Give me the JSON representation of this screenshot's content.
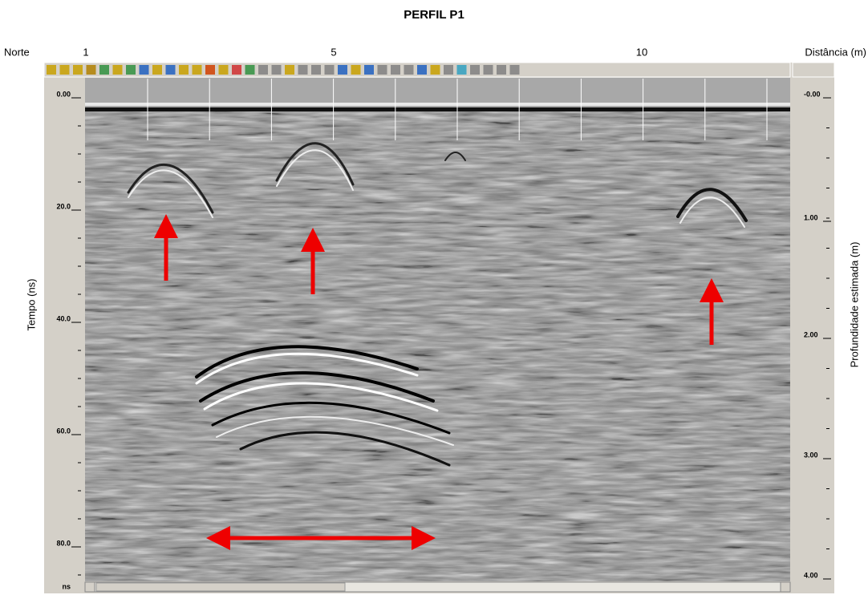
{
  "header": {
    "title": "PERFIL P1"
  },
  "top_axis": {
    "left_label": "Norte",
    "right_label": "Distância (m)",
    "ticks": [
      "1",
      "5",
      "10"
    ]
  },
  "left_axis": {
    "label": "Tempo (ns)",
    "ticks": [
      "0.00",
      "20.0",
      "40.0",
      "60.0",
      "80.0"
    ],
    "unit": "ns"
  },
  "right_axis": {
    "label": "Profundidade estimada (m)",
    "ticks": [
      "-0.00",
      "1.00",
      "2.00",
      "3.00",
      "4.00"
    ]
  }
}
